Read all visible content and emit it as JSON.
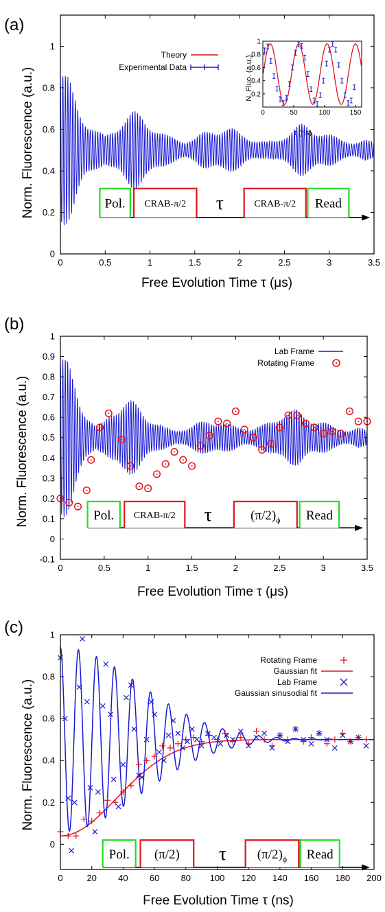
{
  "chart_data": [
    {
      "panel_label": "(a)",
      "type": "line",
      "xlabel": "Free Evolution Time τ (μs)",
      "ylabel": "Norm. Fluorescence (a.u.)",
      "xlim": [
        0,
        3.5
      ],
      "ylim": [
        0,
        1.15
      ],
      "xticks": [
        "0",
        "0.5",
        "1",
        "1.5",
        "2",
        "2.5",
        "3",
        "3.5"
      ],
      "yticks": [
        "0",
        "0.2",
        "0.4",
        "0.6",
        "0.8",
        "1"
      ],
      "legend_position": "top-right",
      "series": [
        {
          "name": "Theory",
          "color": "#e0141e"
        },
        {
          "name": "Experimental Data",
          "color": "#1a1ad4",
          "envelope_x": [
            0,
            0.1,
            0.2,
            0.3,
            0.4,
            0.5,
            0.6,
            0.7,
            0.8,
            0.9,
            1.0,
            1.1,
            1.2,
            1.3,
            1.4,
            1.5,
            1.6,
            1.7,
            1.8,
            1.9,
            2.0,
            2.1,
            2.2,
            2.3,
            2.4,
            2.5,
            2.6,
            2.7,
            2.8,
            2.9,
            3.0,
            3.1,
            3.2,
            3.3,
            3.4,
            3.5
          ],
          "envelope_amplitude": [
            0.42,
            0.34,
            0.24,
            0.16,
            0.1,
            0.07,
            0.12,
            0.17,
            0.19,
            0.18,
            0.15,
            0.1,
            0.07,
            0.06,
            0.05,
            0.06,
            0.09,
            0.11,
            0.12,
            0.11,
            0.09,
            0.07,
            0.05,
            0.04,
            0.05,
            0.08,
            0.11,
            0.13,
            0.12,
            0.1,
            0.08,
            0.06,
            0.05,
            0.04,
            0.05,
            0.04
          ],
          "baseline": 0.5,
          "cycles_per_unit": 36
        }
      ],
      "inset": {
        "xlabel": "τ (ns)",
        "ylabel": "N. Fluo. (a.u.)",
        "xlim": [
          0,
          160
        ],
        "ylim": [
          0,
          1
        ],
        "xticks": [
          "0",
          "50",
          "100",
          "150"
        ],
        "yticks": [
          "0.2",
          "0.4",
          "0.6",
          "0.8",
          "1"
        ],
        "theory_period_ns": 46,
        "points_x": [
          3,
          8,
          13,
          18,
          23,
          28,
          33,
          38,
          43,
          48,
          53,
          58,
          63,
          68,
          73,
          78,
          83,
          88,
          93,
          98,
          103,
          108,
          113,
          118,
          123,
          128,
          133,
          138,
          143,
          148
        ],
        "points_y": [
          0.86,
          0.92,
          0.7,
          0.47,
          0.28,
          0.12,
          0.06,
          0.14,
          0.35,
          0.6,
          0.82,
          0.95,
          0.93,
          0.75,
          0.5,
          0.27,
          0.1,
          0.05,
          0.18,
          0.4,
          0.66,
          0.87,
          0.96,
          0.87,
          0.64,
          0.4,
          0.18,
          0.06,
          0.1,
          0.3
        ]
      },
      "sequence": [
        {
          "label": "Pol.",
          "color": "#22dd22",
          "x0": 0.44,
          "x1": 0.78
        },
        {
          "label": "CRAB-π/2",
          "color": "#e0141e",
          "x0": 0.82,
          "x1": 1.52
        },
        {
          "label": "τ",
          "color": "",
          "x0": 1.66,
          "x1": 1.9
        },
        {
          "label": "CRAB-π/2",
          "color": "#e0141e",
          "x0": 2.05,
          "x1": 2.74
        },
        {
          "label": "Read",
          "color": "#22dd22",
          "x0": 2.76,
          "x1": 3.22
        }
      ],
      "sequence_y": [
        0.175,
        0.315
      ],
      "arrow": {
        "x0": 0.44,
        "x1": 3.5,
        "y": 0.175
      }
    },
    {
      "panel_label": "(b)",
      "type": "line",
      "xlabel": "Free Evolution Time τ (μs)",
      "ylabel": "Norm. Fluorescence (a.u.)",
      "xlim": [
        0,
        3.5
      ],
      "ylim": [
        -0.1,
        1.0
      ],
      "xticks": [
        "0",
        "0.5",
        "1",
        "1.5",
        "2",
        "2.5",
        "3",
        "3.5"
      ],
      "yticks": [
        "-0.1",
        "0",
        "0.1",
        "0.2",
        "0.3",
        "0.4",
        "0.5",
        "0.6",
        "0.7",
        "0.8",
        "0.9",
        "1"
      ],
      "legend_position": "top-right",
      "series": [
        {
          "name": "Lab Frame",
          "color": "#1a1ad4",
          "envelope_x": [
            0,
            0.1,
            0.2,
            0.3,
            0.4,
            0.5,
            0.6,
            0.7,
            0.8,
            0.9,
            1.0,
            1.1,
            1.2,
            1.3,
            1.4,
            1.5,
            1.6,
            1.7,
            1.8,
            1.9,
            2.0,
            2.1,
            2.2,
            2.3,
            2.4,
            2.5,
            2.6,
            2.7,
            2.8,
            2.9,
            3.0,
            3.1,
            3.2,
            3.3,
            3.4,
            3.5
          ],
          "envelope_amplitude": [
            0.46,
            0.36,
            0.24,
            0.14,
            0.06,
            0.08,
            0.16,
            0.2,
            0.19,
            0.16,
            0.12,
            0.08,
            0.05,
            0.04,
            0.05,
            0.06,
            0.08,
            0.1,
            0.09,
            0.07,
            0.06,
            0.05,
            0.05,
            0.06,
            0.09,
            0.13,
            0.14,
            0.14,
            0.12,
            0.1,
            0.08,
            0.06,
            0.05,
            0.04,
            0.05,
            0.04
          ],
          "baseline": 0.5,
          "cycles_per_unit": 36
        },
        {
          "name": "Rotating Frame",
          "color": "#e0141e",
          "points_x": [
            0,
            0.1,
            0.2,
            0.3,
            0.35,
            0.45,
            0.55,
            0.7,
            0.8,
            0.9,
            1.0,
            1.1,
            1.2,
            1.3,
            1.4,
            1.5,
            1.6,
            1.7,
            1.8,
            1.9,
            2.0,
            2.1,
            2.2,
            2.3,
            2.4,
            2.5,
            2.6,
            2.7,
            2.8,
            2.9,
            3.0,
            3.1,
            3.2,
            3.3,
            3.4,
            3.5
          ],
          "points_y": [
            0.2,
            0.18,
            0.16,
            0.24,
            0.39,
            0.55,
            0.62,
            0.49,
            0.36,
            0.26,
            0.25,
            0.32,
            0.37,
            0.43,
            0.39,
            0.36,
            0.46,
            0.51,
            0.58,
            0.57,
            0.63,
            0.54,
            0.5,
            0.44,
            0.47,
            0.55,
            0.61,
            0.61,
            0.57,
            0.55,
            0.52,
            0.53,
            0.52,
            0.63,
            0.58,
            0.58
          ]
        }
      ],
      "sequence": [
        {
          "label": "Pol.",
          "color": "#22dd22",
          "x0": 0.31,
          "x1": 0.68
        },
        {
          "label": "CRAB-π/2",
          "color": "#e0141e",
          "x0": 0.73,
          "x1": 1.42
        },
        {
          "label": "τ",
          "color": "",
          "x0": 1.55,
          "x1": 1.82
        },
        {
          "label": "(π/2)",
          "sub": "ϕ",
          "color": "#e0141e",
          "x0": 1.98,
          "x1": 2.7
        },
        {
          "label": "Read",
          "color": "#22dd22",
          "x0": 2.73,
          "x1": 3.18
        }
      ],
      "sequence_y": [
        0.055,
        0.185
      ],
      "arrow": {
        "x0": 0.31,
        "x1": 3.5,
        "y": 0.055
      }
    },
    {
      "panel_label": "(c)",
      "type": "scatter",
      "xlabel": "Free Evolution Time τ (ns)",
      "ylabel": "Norm. Fluorescence (a.u.)",
      "xlim": [
        0,
        200
      ],
      "ylim": [
        -0.12,
        1.0
      ],
      "xticks": [
        "0",
        "20",
        "40",
        "60",
        "80",
        "100",
        "120",
        "140",
        "160",
        "180",
        "200"
      ],
      "yticks": [
        "0",
        "0.2",
        "0.4",
        "0.6",
        "0.8",
        "1"
      ],
      "legend_position": "top-right",
      "series": [
        {
          "name": "Rotating Frame",
          "color": "#e0141e",
          "marker": "+",
          "points_x": [
            0,
            5,
            10,
            15,
            20,
            25,
            30,
            35,
            40,
            45,
            50,
            55,
            60,
            65,
            70,
            75,
            80,
            85,
            90,
            95,
            100,
            105,
            110,
            115,
            120,
            125,
            130,
            135,
            140,
            145,
            150,
            155,
            160,
            165,
            170,
            175,
            180,
            185,
            190,
            195
          ],
          "points_y": [
            0.06,
            0.04,
            0.04,
            0.12,
            0.11,
            0.15,
            0.21,
            0.2,
            0.25,
            0.28,
            0.38,
            0.4,
            0.42,
            0.47,
            0.46,
            0.48,
            0.5,
            0.51,
            0.49,
            0.52,
            0.5,
            0.53,
            0.49,
            0.51,
            0.48,
            0.54,
            0.5,
            0.47,
            0.52,
            0.5,
            0.55,
            0.49,
            0.51,
            0.53,
            0.48,
            0.5,
            0.53,
            0.49,
            0.51,
            0.5
          ]
        },
        {
          "name": "Gaussian fit",
          "color": "#e0141e",
          "fit_start": 0.04,
          "fit_end": 0.5,
          "fit_sigma_ns": 36
        },
        {
          "name": "Lab Frame",
          "color": "#1a1ad4",
          "marker": "x",
          "points_x": [
            0,
            3,
            5,
            7,
            9,
            12,
            14,
            17,
            19,
            22,
            24,
            27,
            29,
            32,
            34,
            37,
            40,
            42,
            45,
            47,
            50,
            52,
            55,
            58,
            60,
            63,
            66,
            69,
            72,
            75,
            78,
            81,
            84,
            87,
            90,
            94,
            98,
            102,
            106,
            110,
            115,
            120,
            125,
            130,
            135,
            140,
            145,
            150,
            155,
            160,
            165,
            170,
            175,
            180,
            185,
            190,
            195
          ],
          "points_y": [
            0.89,
            0.6,
            0.22,
            -0.03,
            0.2,
            0.75,
            0.98,
            0.68,
            0.27,
            0.06,
            0.25,
            0.66,
            0.86,
            0.62,
            0.31,
            0.18,
            0.38,
            0.7,
            0.76,
            0.55,
            0.33,
            0.32,
            0.5,
            0.68,
            0.62,
            0.44,
            0.4,
            0.52,
            0.59,
            0.53,
            0.46,
            0.49,
            0.55,
            0.5,
            0.47,
            0.53,
            0.51,
            0.48,
            0.52,
            0.5,
            0.54,
            0.47,
            0.51,
            0.53,
            0.46,
            0.52,
            0.49,
            0.55,
            0.5,
            0.48,
            0.53,
            0.5,
            0.46,
            0.52,
            0.49,
            0.51,
            0.47
          ]
        },
        {
          "name": "Gaussian sinusodial fit",
          "color": "#1a1ad4",
          "fit_baseline": 0.5,
          "fit_amplitude": 0.44,
          "fit_period_ns": 11.5,
          "fit_sigma_ns": 50
        }
      ],
      "sequence": [
        {
          "label": "Pol.",
          "color": "#22dd22",
          "x0": 27,
          "x1": 48
        },
        {
          "label": "(π/2)",
          "color": "#e0141e",
          "x0": 51,
          "x1": 85
        },
        {
          "label": "τ",
          "color": "",
          "x0": 95,
          "x1": 112
        },
        {
          "label": "(π/2)",
          "sub": "ϕ",
          "color": "#e0141e",
          "x0": 118,
          "x1": 152
        },
        {
          "label": "Read",
          "color": "#22dd22",
          "x0": 153,
          "x1": 178
        }
      ],
      "sequence_y": [
        -0.11,
        0.02
      ],
      "arrow": {
        "x0": 27,
        "x1": 200,
        "y": -0.11
      }
    }
  ]
}
